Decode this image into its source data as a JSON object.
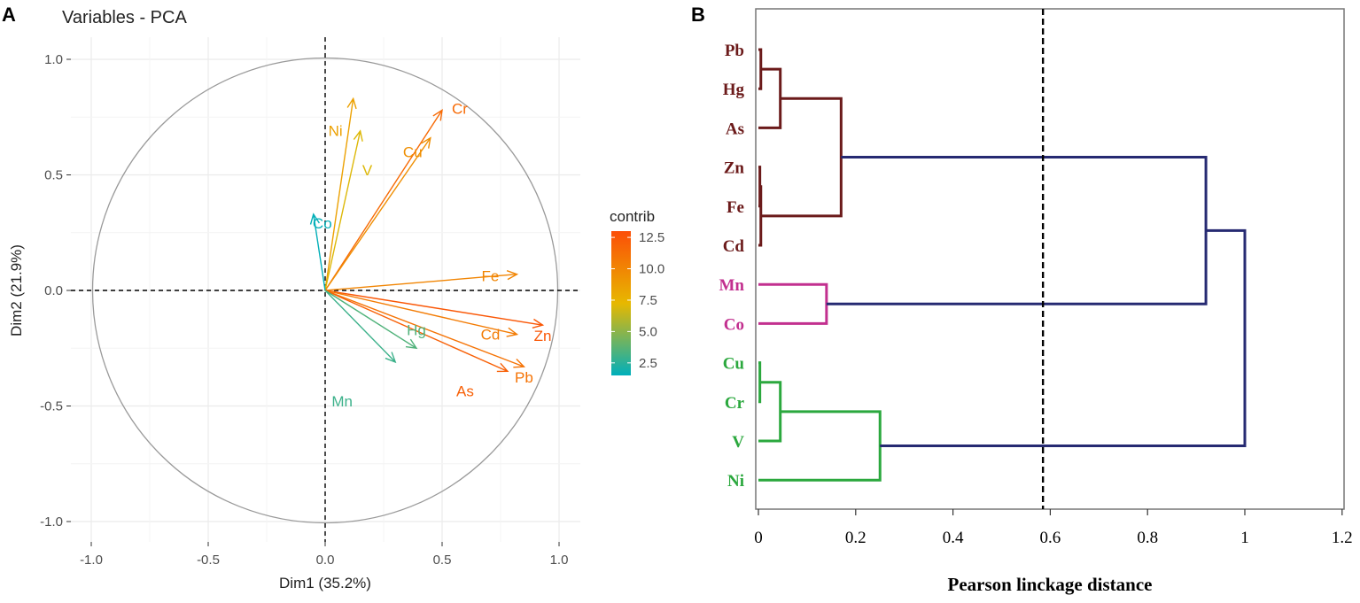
{
  "panel_a": {
    "label": "A",
    "chart_data": {
      "type": "scatter",
      "title": "Variables - PCA",
      "xlabel": "Dim1 (35.2%)",
      "ylabel": "Dim2 (21.9%)",
      "xlim": [
        -1.1,
        1.1
      ],
      "ylim": [
        -1.05,
        1.05
      ],
      "x_ticks": [
        -1.0,
        -0.5,
        0.0,
        0.5,
        1.0
      ],
      "x_tick_labels": [
        "-1.0",
        "-0.5",
        "0.0",
        "0.5",
        "1.0"
      ],
      "y_ticks": [
        -1.0,
        -0.5,
        0.0,
        0.5,
        1.0
      ],
      "y_tick_labels": [
        "-1.0",
        "-0.5",
        "0.0",
        "0.5",
        "1.0"
      ],
      "grid": true,
      "correlation_circle": true,
      "variables": [
        {
          "name": "Cr",
          "x": 0.5,
          "y": 0.78,
          "contrib": 11.5
        },
        {
          "name": "Ni",
          "x": 0.12,
          "y": 0.83,
          "contrib": 8.5
        },
        {
          "name": "V",
          "x": 0.15,
          "y": 0.69,
          "contrib": 7.0
        },
        {
          "name": "Cu",
          "x": 0.45,
          "y": 0.66,
          "contrib": 9.5
        },
        {
          "name": "Co",
          "x": -0.05,
          "y": 0.33,
          "contrib": 1.6
        },
        {
          "name": "Fe",
          "x": 0.82,
          "y": 0.07,
          "contrib": 10.0
        },
        {
          "name": "Zn",
          "x": 0.93,
          "y": -0.15,
          "contrib": 12.5
        },
        {
          "name": "Cd",
          "x": 0.82,
          "y": -0.19,
          "contrib": 10.5
        },
        {
          "name": "Pb",
          "x": 0.85,
          "y": -0.33,
          "contrib": 11.0
        },
        {
          "name": "As",
          "x": 0.78,
          "y": -0.35,
          "contrib": 12.0
        },
        {
          "name": "Hg",
          "x": 0.39,
          "y": -0.25,
          "contrib": 3.5
        },
        {
          "name": "Mn",
          "x": 0.3,
          "y": -0.31,
          "contrib": 3.0
        }
      ],
      "legend": {
        "title": "contrib",
        "ticks": [
          2.5,
          5.0,
          7.5,
          10.0,
          12.5
        ],
        "tick_labels": [
          "2.5",
          "5.0",
          "7.5",
          "10.0",
          "12.5"
        ],
        "range": [
          1.5,
          13.0
        ],
        "colors": [
          "#00AFBB",
          "#E7B800",
          "#FC4E07"
        ],
        "position": "right"
      }
    }
  },
  "panel_b": {
    "label": "B",
    "chart_data": {
      "type": "dendrogram",
      "xlabel": "Pearson linckage distance",
      "xlim": [
        0,
        1.2
      ],
      "x_ticks": [
        0,
        0.2,
        0.4,
        0.6,
        0.8,
        1.0,
        1.2
      ],
      "x_tick_labels": [
        "0",
        "0.2",
        "0.4",
        "0.6",
        "0.8",
        "1",
        "1.2"
      ],
      "cut_line": 0.585,
      "leaves": [
        {
          "name": "Pb",
          "color": "#6B1A1A"
        },
        {
          "name": "Hg",
          "color": "#6B1A1A"
        },
        {
          "name": "As",
          "color": "#6B1A1A"
        },
        {
          "name": "Zn",
          "color": "#6B1A1A"
        },
        {
          "name": "Fe",
          "color": "#6B1A1A"
        },
        {
          "name": "Cd",
          "color": "#6B1A1A"
        },
        {
          "name": "Mn",
          "color": "#C2308F"
        },
        {
          "name": "Co",
          "color": "#C2308F"
        },
        {
          "name": "Cu",
          "color": "#2BA83E"
        },
        {
          "name": "Cr",
          "color": "#2BA83E"
        },
        {
          "name": "V",
          "color": "#2BA83E"
        },
        {
          "name": "Ni",
          "color": "#2BA83E"
        }
      ],
      "merges": [
        {
          "a": "Pb",
          "b": "Hg",
          "height": 0.005,
          "color": "#6B1A1A"
        },
        {
          "a": "Pb+Hg",
          "b": "As",
          "height": 0.045,
          "color": "#6B1A1A"
        },
        {
          "a": "Zn",
          "b": "Fe",
          "height": 0.003,
          "color": "#6B1A1A"
        },
        {
          "a": "Zn+Fe",
          "b": "Cd",
          "height": 0.005,
          "color": "#6B1A1A"
        },
        {
          "a": "Pb+Hg+As",
          "b": "Zn+Fe+Cd",
          "height": 0.17,
          "color": "#6B1A1A"
        },
        {
          "a": "Mn",
          "b": "Co",
          "height": 0.14,
          "color": "#C2308F"
        },
        {
          "a": "Cu",
          "b": "Cr",
          "height": 0.003,
          "color": "#2BA83E"
        },
        {
          "a": "Cu+Cr",
          "b": "V",
          "height": 0.045,
          "color": "#2BA83E"
        },
        {
          "a": "Cu+Cr+V",
          "b": "Ni",
          "height": 0.25,
          "color": "#2BA83E"
        },
        {
          "a": "Pb..Cd",
          "b": "Mn+Co",
          "height": 0.92,
          "color": "#262A72"
        },
        {
          "a": "Pb..Co",
          "b": "Cu..Ni",
          "height": 1.0,
          "color": "#262A72"
        }
      ]
    }
  }
}
